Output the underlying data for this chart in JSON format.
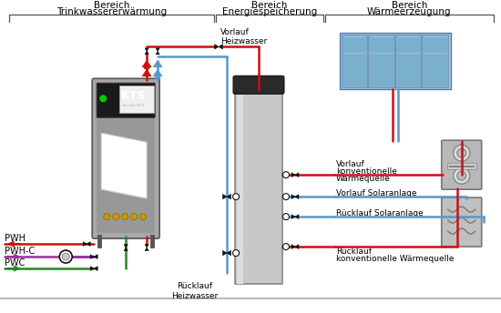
{
  "bg": "#ffffff",
  "red": "#cc1111",
  "blue": "#5599cc",
  "blue_dark": "#3377bb",
  "green": "#228822",
  "purple": "#993399",
  "black": "#111111",
  "gray_bracket": "#555555",
  "gray_tank": "#c8c8c8",
  "gray_tank_cap": "#2a2a2a",
  "gray_kts": "#b0b0b0",
  "gray_panel": "#888888",
  "solar_bg": "#a8c8dc",
  "solar_cell": "#7ab0cc",
  "hp_gray": "#b8b8b8",
  "floor_gray": "#bbbbbb",
  "zone1_l1": "Bereich",
  "zone1_l2": "Trinkwassererwärmung",
  "zone2_l1": "Bereich",
  "zone2_l2": "Energiespeicherung",
  "zone3_l1": "Bereich",
  "zone3_l2": "Wärmeerzeugung",
  "lbl_vorlauf_heiz": "Vorlauf\nHeizwasser",
  "lbl_ruecklauf_heiz": "Rücklauf\nHeizwasser",
  "lbl_vorlauf_konv_l1": "Vorlauf",
  "lbl_vorlauf_konv_l2": "konventionelle",
  "lbl_vorlauf_konv_l3": "Wärmequelle",
  "lbl_vorlauf_solar": "Vorlauf Solaranlage",
  "lbl_ruecklauf_solar": "Rücklauf Solaranlage",
  "lbl_ruecklauf_konv_l1": "Rücklauf",
  "lbl_ruecklauf_konv_l2": "konventionelle Wärmequelle",
  "lbl_PWH": "PWH",
  "lbl_PWHC": "PWH-C",
  "lbl_PWC": "PWC",
  "font_zone": 7.5,
  "font_label": 6.5,
  "font_pwx": 7.0,
  "pipe_lw": 1.8,
  "valve_size": 4.5
}
